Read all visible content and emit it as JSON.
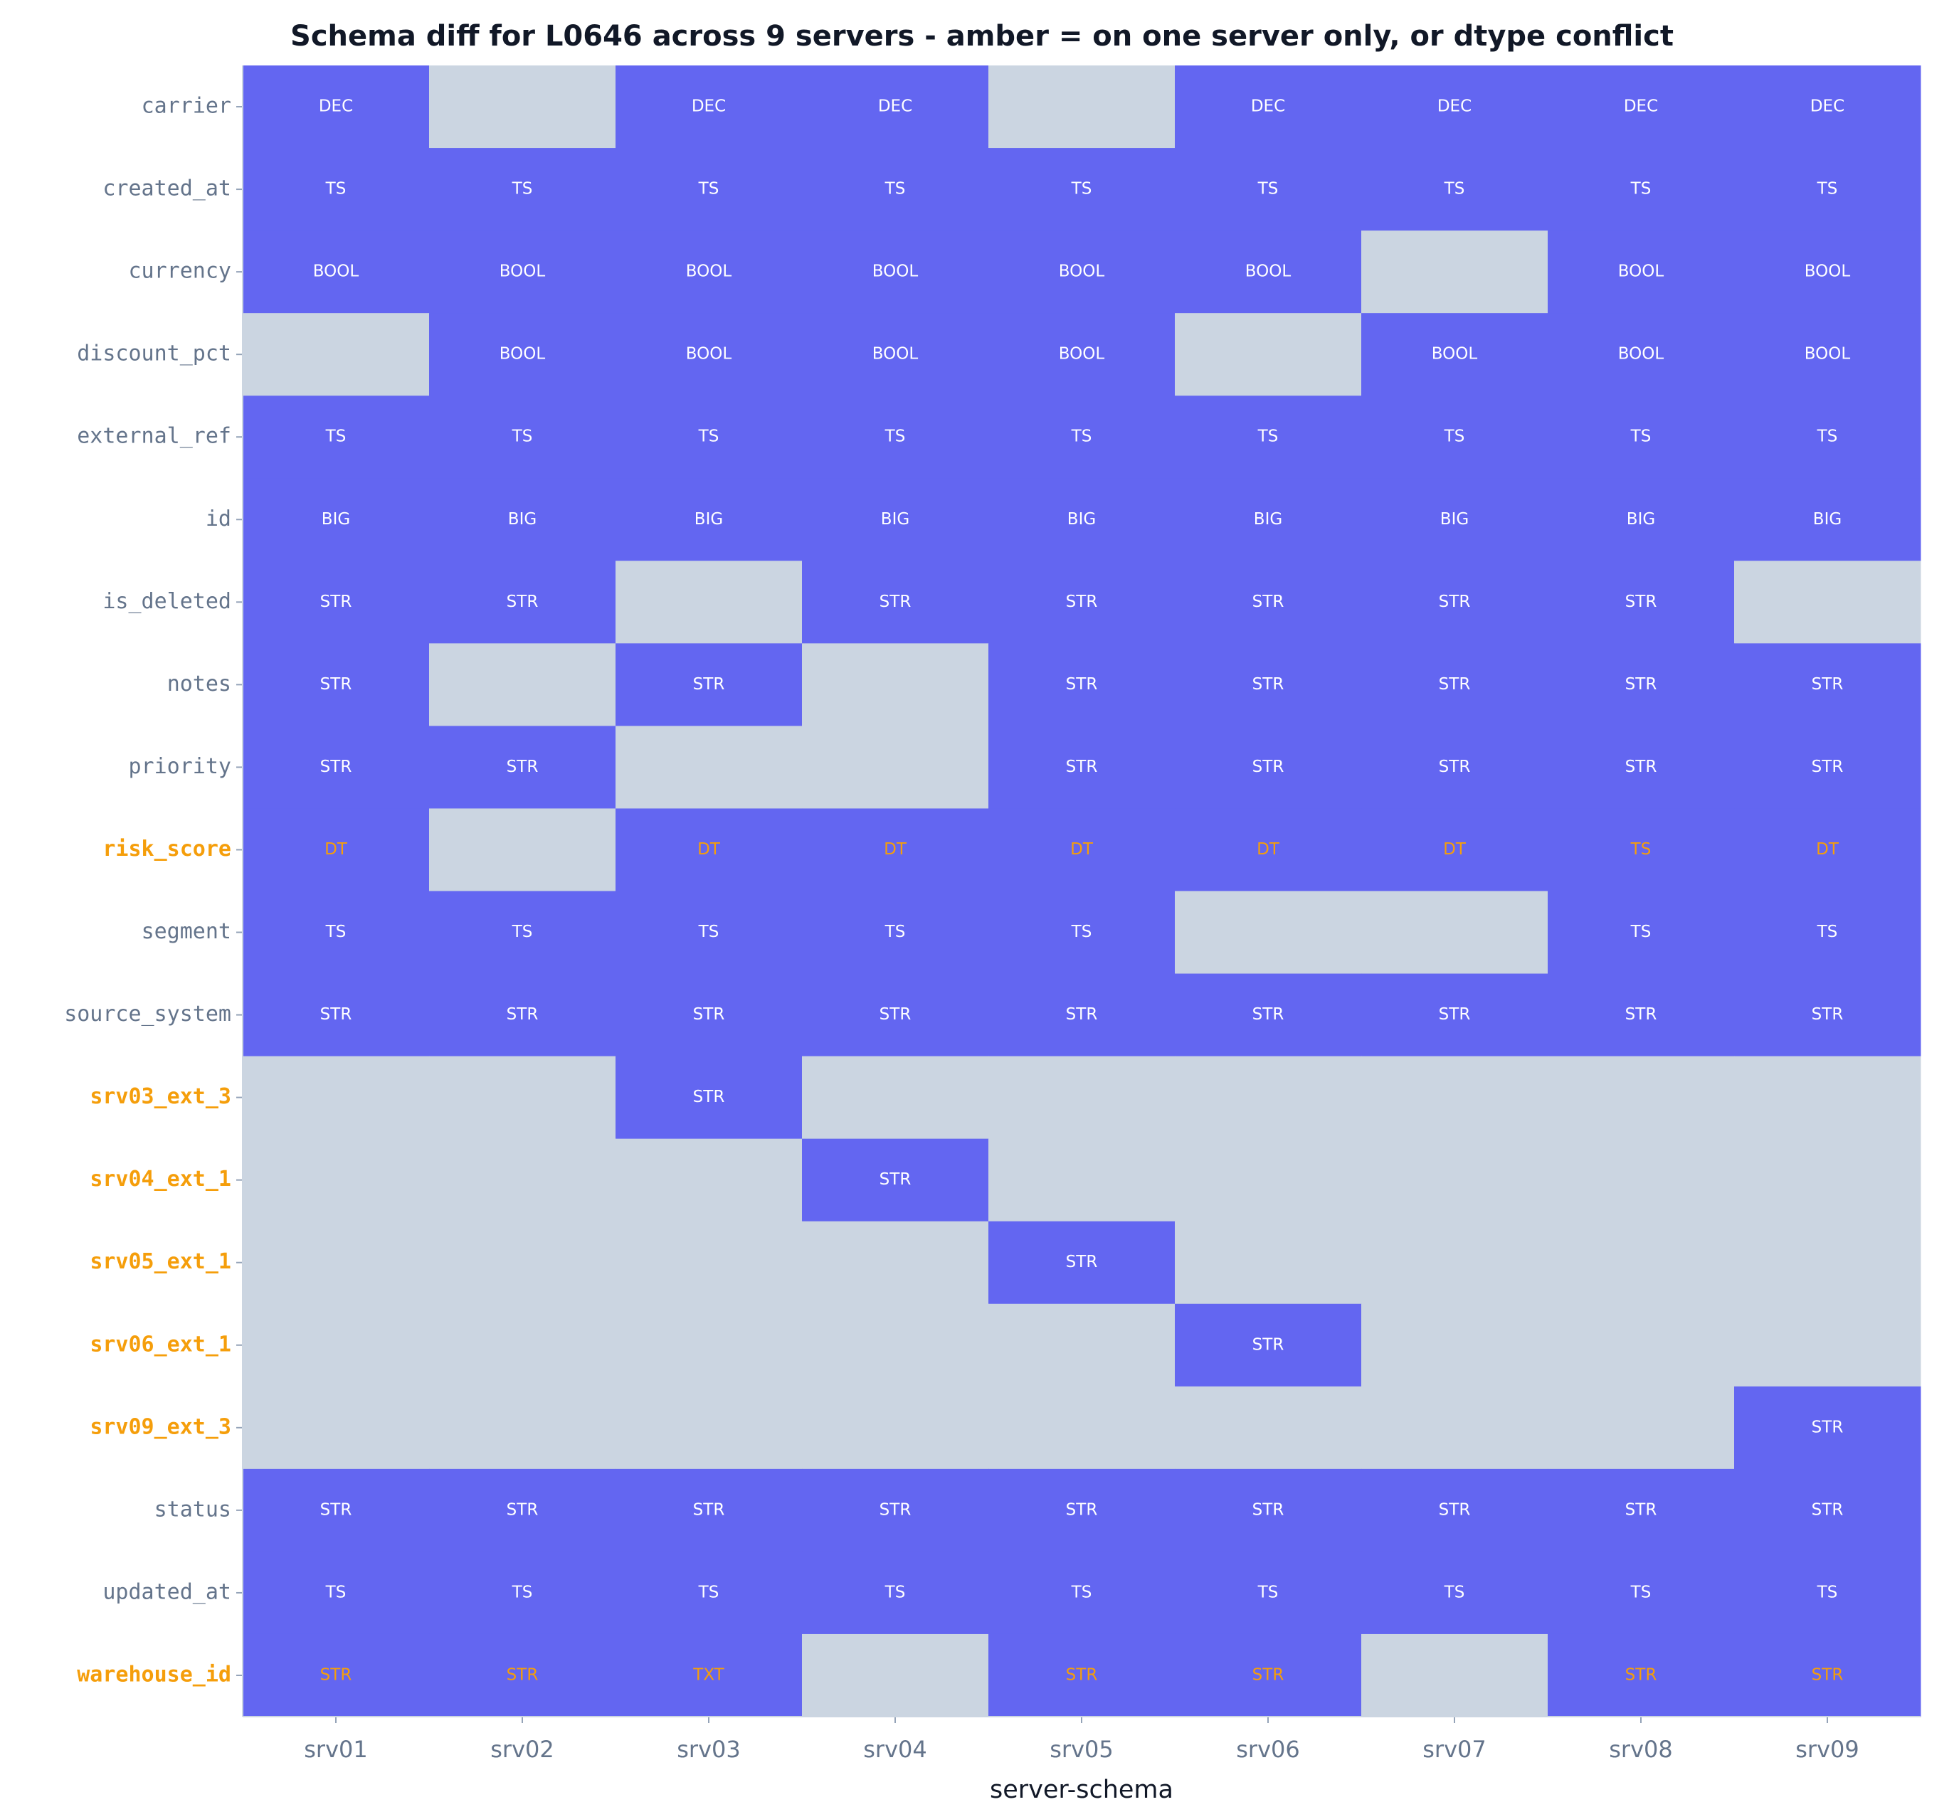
{
  "chart_data": {
    "type": "heatmap",
    "title": "Schema diff for L0646 across 9 servers - amber = on one server only, or dtype conflict",
    "xlabel": "server-schema",
    "categories": [
      "srv01",
      "srv02",
      "srv03",
      "srv04",
      "srv05",
      "srv06",
      "srv07",
      "srv08",
      "srv09"
    ],
    "present_color": "#6366f1",
    "absent_color": "#cbd5e1",
    "amber_color": "#f59e0b",
    "rows": [
      {
        "name": "carrier",
        "amber": false,
        "conflict": false,
        "cells": [
          "DEC",
          null,
          "DEC",
          "DEC",
          null,
          "DEC",
          "DEC",
          "DEC",
          "DEC"
        ]
      },
      {
        "name": "created_at",
        "amber": false,
        "conflict": false,
        "cells": [
          "TS",
          "TS",
          "TS",
          "TS",
          "TS",
          "TS",
          "TS",
          "TS",
          "TS"
        ]
      },
      {
        "name": "currency",
        "amber": false,
        "conflict": false,
        "cells": [
          "BOOL",
          "BOOL",
          "BOOL",
          "BOOL",
          "BOOL",
          "BOOL",
          null,
          "BOOL",
          "BOOL"
        ]
      },
      {
        "name": "discount_pct",
        "amber": false,
        "conflict": false,
        "cells": [
          null,
          "BOOL",
          "BOOL",
          "BOOL",
          "BOOL",
          null,
          "BOOL",
          "BOOL",
          "BOOL"
        ]
      },
      {
        "name": "external_ref",
        "amber": false,
        "conflict": false,
        "cells": [
          "TS",
          "TS",
          "TS",
          "TS",
          "TS",
          "TS",
          "TS",
          "TS",
          "TS"
        ]
      },
      {
        "name": "id",
        "amber": false,
        "conflict": false,
        "cells": [
          "BIG",
          "BIG",
          "BIG",
          "BIG",
          "BIG",
          "BIG",
          "BIG",
          "BIG",
          "BIG"
        ]
      },
      {
        "name": "is_deleted",
        "amber": false,
        "conflict": false,
        "cells": [
          "STR",
          "STR",
          null,
          "STR",
          "STR",
          "STR",
          "STR",
          "STR",
          null
        ]
      },
      {
        "name": "notes",
        "amber": false,
        "conflict": false,
        "cells": [
          "STR",
          null,
          "STR",
          null,
          "STR",
          "STR",
          "STR",
          "STR",
          "STR"
        ]
      },
      {
        "name": "priority",
        "amber": false,
        "conflict": false,
        "cells": [
          "STR",
          "STR",
          null,
          null,
          "STR",
          "STR",
          "STR",
          "STR",
          "STR"
        ]
      },
      {
        "name": "risk_score",
        "amber": true,
        "conflict": true,
        "cells": [
          "DT",
          null,
          "DT",
          "DT",
          "DT",
          "DT",
          "DT",
          "TS",
          "DT"
        ]
      },
      {
        "name": "segment",
        "amber": false,
        "conflict": false,
        "cells": [
          "TS",
          "TS",
          "TS",
          "TS",
          "TS",
          null,
          null,
          "TS",
          "TS"
        ]
      },
      {
        "name": "source_system",
        "amber": false,
        "conflict": false,
        "cells": [
          "STR",
          "STR",
          "STR",
          "STR",
          "STR",
          "STR",
          "STR",
          "STR",
          "STR"
        ]
      },
      {
        "name": "srv03_ext_3",
        "amber": true,
        "conflict": false,
        "cells": [
          null,
          null,
          "STR",
          null,
          null,
          null,
          null,
          null,
          null
        ]
      },
      {
        "name": "srv04_ext_1",
        "amber": true,
        "conflict": false,
        "cells": [
          null,
          null,
          null,
          "STR",
          null,
          null,
          null,
          null,
          null
        ]
      },
      {
        "name": "srv05_ext_1",
        "amber": true,
        "conflict": false,
        "cells": [
          null,
          null,
          null,
          null,
          "STR",
          null,
          null,
          null,
          null
        ]
      },
      {
        "name": "srv06_ext_1",
        "amber": true,
        "conflict": false,
        "cells": [
          null,
          null,
          null,
          null,
          null,
          "STR",
          null,
          null,
          null
        ]
      },
      {
        "name": "srv09_ext_3",
        "amber": true,
        "conflict": false,
        "cells": [
          null,
          null,
          null,
          null,
          null,
          null,
          null,
          null,
          "STR"
        ]
      },
      {
        "name": "status",
        "amber": false,
        "conflict": false,
        "cells": [
          "STR",
          "STR",
          "STR",
          "STR",
          "STR",
          "STR",
          "STR",
          "STR",
          "STR"
        ]
      },
      {
        "name": "updated_at",
        "amber": false,
        "conflict": false,
        "cells": [
          "TS",
          "TS",
          "TS",
          "TS",
          "TS",
          "TS",
          "TS",
          "TS",
          "TS"
        ]
      },
      {
        "name": "warehouse_id",
        "amber": true,
        "conflict": true,
        "cells": [
          "STR",
          "STR",
          "TXT",
          null,
          "STR",
          "STR",
          null,
          "STR",
          "STR"
        ]
      }
    ]
  }
}
